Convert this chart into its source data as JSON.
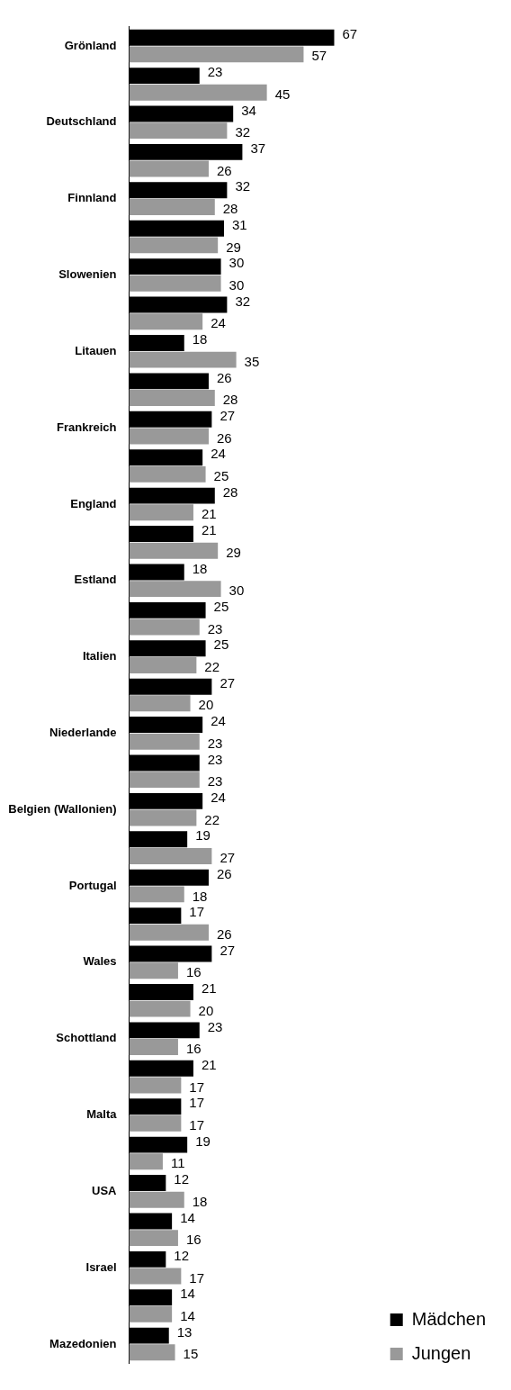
{
  "chart_data": {
    "type": "bar",
    "orientation": "horizontal",
    "data_labels": true,
    "legend": "bottom right",
    "grid": false,
    "categories": [
      "Grönland",
      null,
      "Deutschland",
      null,
      "Finnland",
      null,
      "Slowenien",
      null,
      "Litauen",
      null,
      "Frankreich",
      null,
      "England",
      null,
      "Estland",
      null,
      "Italien",
      null,
      "Niederlande",
      null,
      "Belgien (Wallonien)",
      null,
      "Portugal",
      null,
      "Wales",
      null,
      "Schottland",
      null,
      "Malta",
      null,
      "USA",
      null,
      "Israel",
      null,
      "Mazedonien"
    ],
    "series": [
      {
        "name": "Mädchen",
        "color": "#000000",
        "values": [
          67,
          23,
          34,
          37,
          32,
          31,
          30,
          32,
          18,
          26,
          27,
          24,
          28,
          21,
          18,
          25,
          25,
          27,
          24,
          23,
          24,
          19,
          26,
          17,
          27,
          21,
          23,
          21,
          17,
          19,
          12,
          14,
          12,
          14,
          13
        ]
      },
      {
        "name": "Jungen",
        "color": "#999999",
        "values": [
          57,
          45,
          32,
          26,
          28,
          29,
          30,
          24,
          35,
          28,
          26,
          25,
          21,
          29,
          30,
          23,
          22,
          20,
          23,
          23,
          22,
          27,
          18,
          26,
          16,
          20,
          16,
          17,
          17,
          11,
          18,
          16,
          17,
          14,
          15
        ]
      }
    ]
  }
}
